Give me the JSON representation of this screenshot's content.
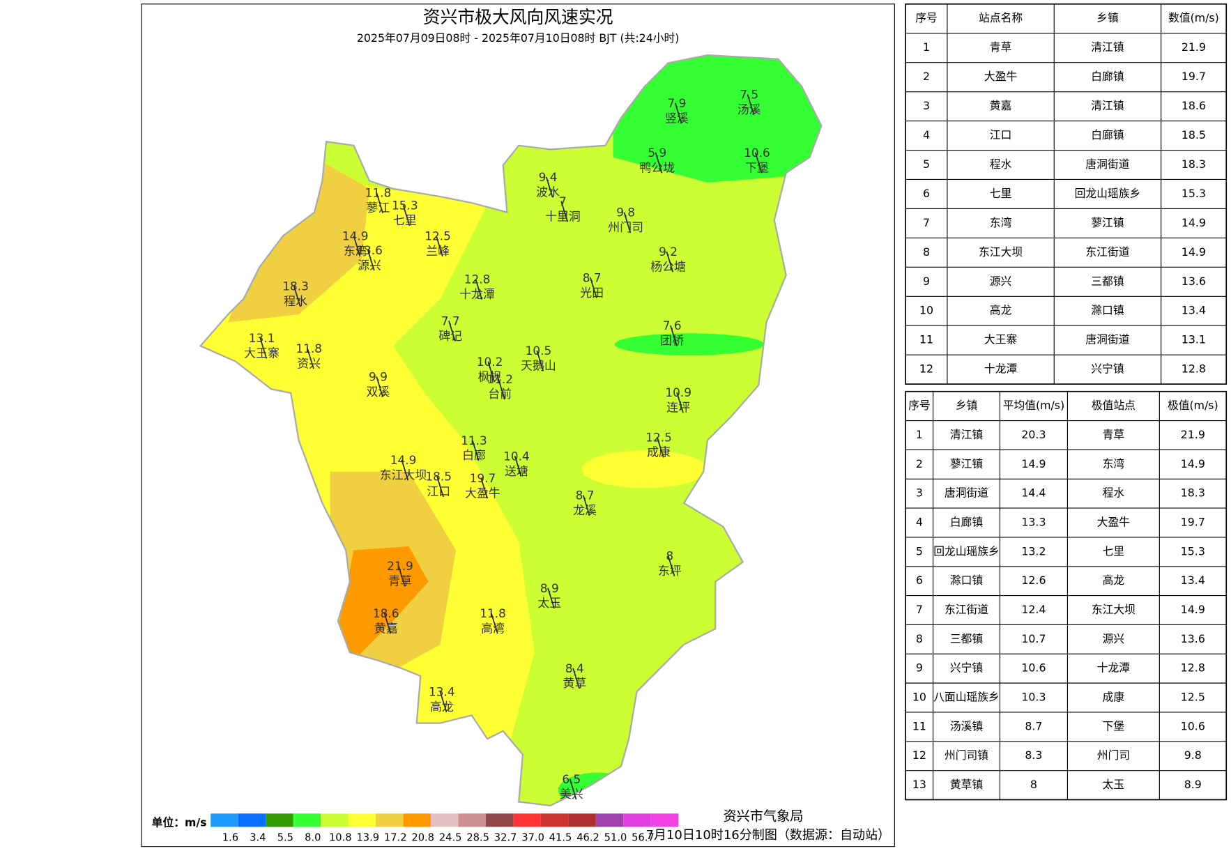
{
  "header": {
    "title": "资兴市极大风向风速实况",
    "subtitle": "2025年07月09日08时 - 2025年07月10日08时 BJT (共:24小时)"
  },
  "map": {
    "stations": [
      {
        "value": 7.9,
        "name": "竖溪"
      },
      {
        "value": 7.5,
        "name": "汤溪"
      },
      {
        "value": 5.9,
        "name": "鸭公垅"
      },
      {
        "value": 10.6,
        "name": "下堡"
      },
      {
        "value": 9.4,
        "name": "波水"
      },
      {
        "value": 7,
        "name": "十里洞"
      },
      {
        "value": 9.8,
        "name": "州门司"
      },
      {
        "value": 11.8,
        "name": "蓼江"
      },
      {
        "value": 15.3,
        "name": "七里"
      },
      {
        "value": 12.5,
        "name": "兰峰"
      },
      {
        "value": 14.9,
        "name": "东湾"
      },
      {
        "value": 13.6,
        "name": "源兴"
      },
      {
        "value": 18.3,
        "name": "程水"
      },
      {
        "value": 12.8,
        "name": "十龙潭"
      },
      {
        "value": 8.7,
        "name": "光田"
      },
      {
        "value": 9.2,
        "name": "杨公塘"
      },
      {
        "value": 7.7,
        "name": "碑记"
      },
      {
        "value": 7.6,
        "name": "团桥"
      },
      {
        "value": 13.1,
        "name": "大王寨"
      },
      {
        "value": 11.8,
        "name": "资兴"
      },
      {
        "value": 10.2,
        "name": "枫枧"
      },
      {
        "value": 10.5,
        "name": "天鹅山"
      },
      {
        "value": 11.2,
        "name": "台前"
      },
      {
        "value": 9.9,
        "name": "双溪"
      },
      {
        "value": 10.9,
        "name": "连坪"
      },
      {
        "value": 11.3,
        "name": "白廊"
      },
      {
        "value": 10.4,
        "name": "送塘"
      },
      {
        "value": 12.5,
        "name": "成康"
      },
      {
        "value": 14.9,
        "name": "东江大坝"
      },
      {
        "value": 18.5,
        "name": "江口"
      },
      {
        "value": 19.7,
        "name": "大盈牛"
      },
      {
        "value": 8.7,
        "name": "龙溪"
      },
      {
        "value": 8,
        "name": "东坪"
      },
      {
        "value": 21.9,
        "name": "青草"
      },
      {
        "value": 8.9,
        "name": "太玉"
      },
      {
        "value": 18.6,
        "name": "黄嘉"
      },
      {
        "value": 11.8,
        "name": "高湾"
      },
      {
        "value": 8.4,
        "name": "黄草"
      },
      {
        "value": 13.4,
        "name": "高龙"
      },
      {
        "value": 6.5,
        "name": "美兴"
      }
    ]
  },
  "legend": {
    "unit_label": "单位：m/s",
    "colors": [
      "#1e9bff",
      "#0a6eff",
      "#339900",
      "#33ff33",
      "#ccff33",
      "#ffff33",
      "#f0d040",
      "#ff9900",
      "#e5c0c0",
      "#cc9090",
      "#904848",
      "#ff3333",
      "#cc3333",
      "#b03030",
      "#a040b0",
      "#e040e0",
      "#f040e0"
    ],
    "labels": [
      "1.6",
      "3.4",
      "5.5",
      "8.0",
      "10.8",
      "13.9",
      "17.2",
      "20.8",
      "24.5",
      "28.5",
      "32.7",
      "37.0",
      "41.5",
      "46.2",
      "51.0",
      "56.7"
    ]
  },
  "footer": {
    "agency": "资兴市气象局",
    "note": "7月10日10时16分制图（数据源：自动站）"
  },
  "table1": {
    "header": [
      "序号",
      "站点名称",
      "乡镇",
      "数值(m/s)"
    ],
    "rows": [
      [
        1,
        "青草",
        "清江镇",
        21.9
      ],
      [
        2,
        "大盈牛",
        "白廊镇",
        19.7
      ],
      [
        3,
        "黄嘉",
        "清江镇",
        18.6
      ],
      [
        4,
        "江口",
        "白廊镇",
        18.5
      ],
      [
        5,
        "程水",
        "唐洞街道",
        18.3
      ],
      [
        6,
        "七里",
        "回龙山瑶族乡",
        15.3
      ],
      [
        7,
        "东湾",
        "蓼江镇",
        14.9
      ],
      [
        8,
        "东江大坝",
        "东江街道",
        14.9
      ],
      [
        9,
        "源兴",
        "三都镇",
        13.6
      ],
      [
        10,
        "高龙",
        "滁口镇",
        13.4
      ],
      [
        11,
        "大王寨",
        "唐洞街道",
        13.1
      ],
      [
        12,
        "十龙潭",
        "兴宁镇",
        12.8
      ]
    ]
  },
  "table2": {
    "header": [
      "序号",
      "乡镇",
      "平均值(m/s)",
      "极值站点",
      "极值(m/s)"
    ],
    "rows": [
      [
        1,
        "清江镇",
        20.3,
        "青草",
        21.9
      ],
      [
        2,
        "蓼江镇",
        14.9,
        "东湾",
        14.9
      ],
      [
        3,
        "唐洞街道",
        14.4,
        "程水",
        18.3
      ],
      [
        4,
        "白廊镇",
        13.3,
        "大盈牛",
        19.7
      ],
      [
        5,
        "回龙山瑶族乡",
        13.2,
        "七里",
        15.3
      ],
      [
        6,
        "滁口镇",
        12.6,
        "高龙",
        13.4
      ],
      [
        7,
        "东江街道",
        12.4,
        "东江大坝",
        14.9
      ],
      [
        8,
        "三都镇",
        10.7,
        "源兴",
        13.6
      ],
      [
        9,
        "兴宁镇",
        10.6,
        "十龙潭",
        12.8
      ],
      [
        10,
        "八面山瑶族乡",
        10.3,
        "成康",
        12.5
      ],
      [
        11,
        "汤溪镇",
        8.7,
        "下堡",
        10.6
      ],
      [
        12,
        "州门司镇",
        8.3,
        "州门司",
        9.8
      ],
      [
        13,
        "黄草镇",
        8,
        "太玉",
        8.9
      ]
    ]
  }
}
